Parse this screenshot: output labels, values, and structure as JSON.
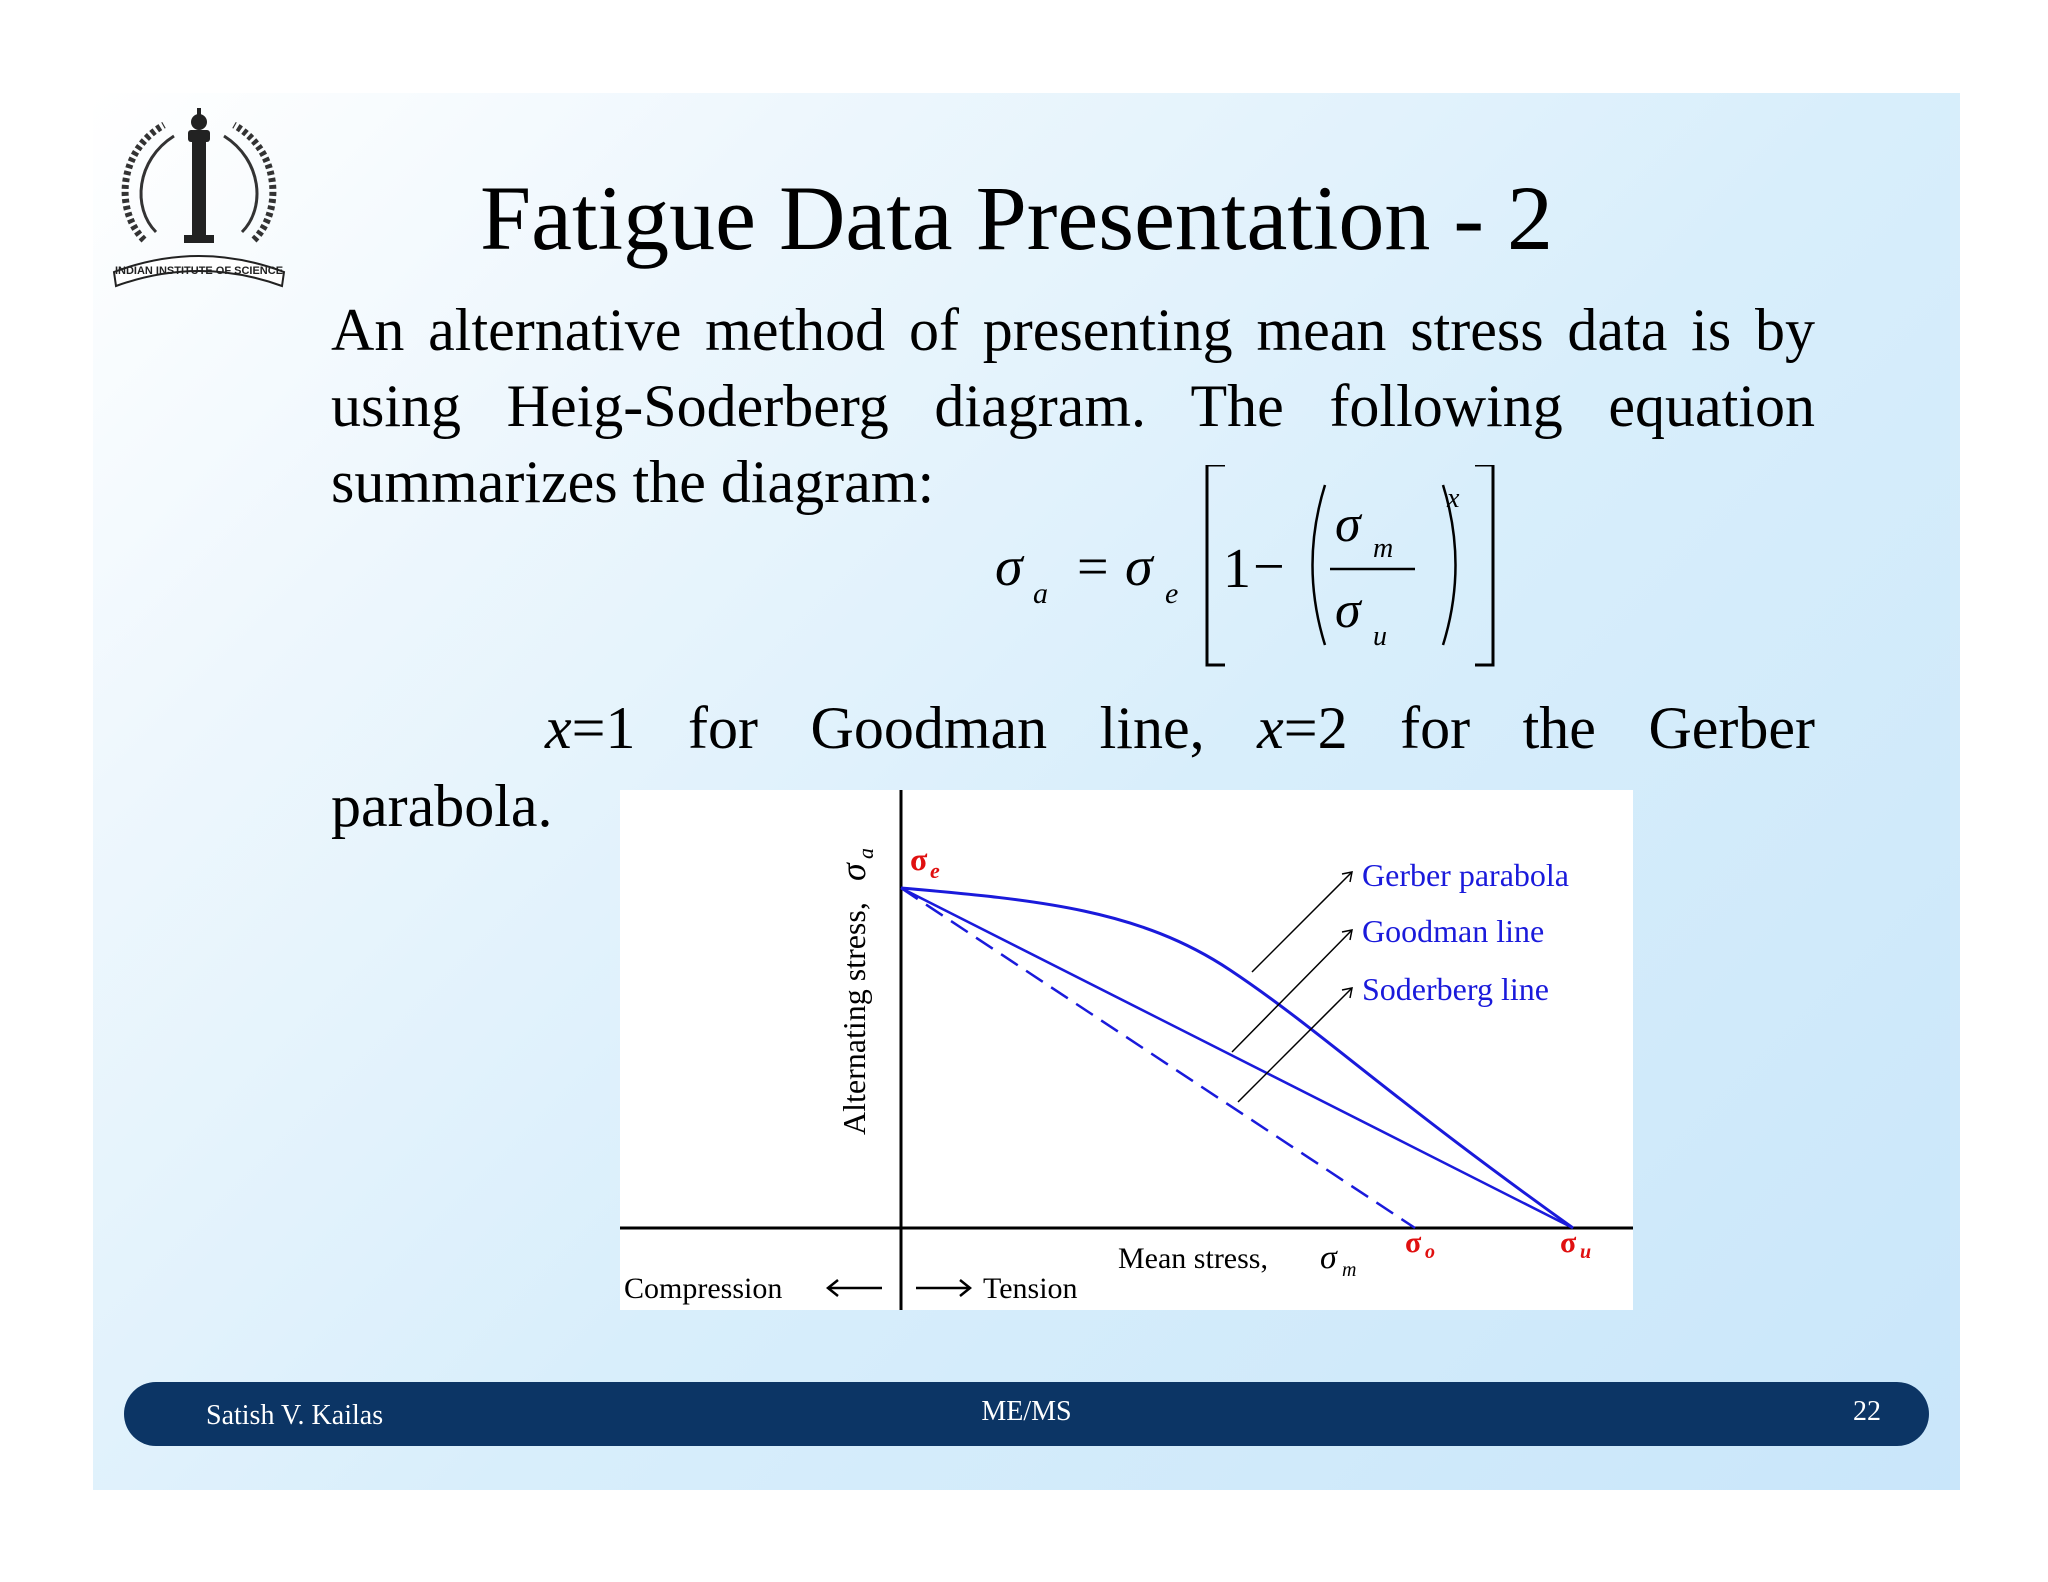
{
  "slide": {
    "title": "Fatigue Data Presentation - 2",
    "logo_text": "INDIAN INSTITUTE OF SCIENCE",
    "body_lines": [
      "An alternative method of presenting mean stress data is by",
      "using Heig-Soderberg diagram. The following equation",
      "summarizes the diagram:"
    ],
    "equation": {
      "lhs": "σ",
      "lhs_sub": "a",
      "eq": "=",
      "coef": "σ",
      "coef_sub": "e",
      "one": "1",
      "minus": "−",
      "num": "σ",
      "num_sub": "m",
      "den": "σ",
      "den_sub": "u",
      "exponent": "x"
    },
    "x_line": {
      "x1_var": "x",
      "x1_rest": "=1 for Goodman line,",
      "x2_var": "x",
      "x2_rest": "=2 for the Gerber"
    },
    "parabola_word": "parabola."
  },
  "diagram": {
    "y_axis_label": "Alternating stress,",
    "y_axis_symbol": "σ",
    "y_axis_symbol_sub": "a",
    "x_axis_label": "Mean stress,",
    "x_axis_symbol": "σ",
    "x_axis_symbol_sub": "m",
    "sigma_e": "σ",
    "sigma_e_sub": "e",
    "sigma_o": "σ",
    "sigma_o_sub": "o",
    "sigma_u": "σ",
    "sigma_u_sub": "u",
    "gerber_label": "Gerber parabola",
    "goodman_label": "Goodman line",
    "soderberg_label": "Soderberg line",
    "compression_label": "Compression",
    "tension_label": "Tension",
    "curve_color": "#1a1adb",
    "marker_color": "#e01010"
  },
  "footer": {
    "author": "Satish V. Kailas",
    "course": "ME/MS",
    "page": "22"
  }
}
